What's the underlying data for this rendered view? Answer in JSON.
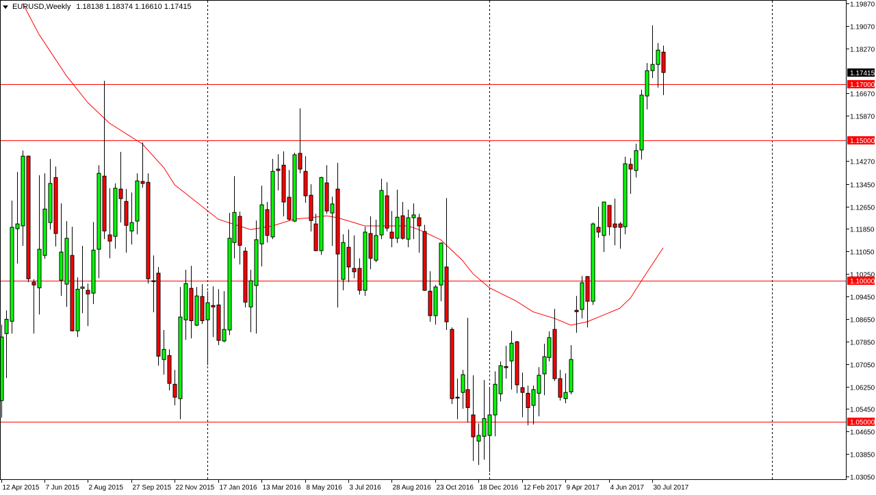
{
  "header": {
    "symbol_period": "EURUSD,Weekly",
    "ohlc_text": "1.18138 1.18374 1.16610 1.17415"
  },
  "colors": {
    "bull": "#00ff00",
    "bear": "#ff0000",
    "ma": "#ff0000",
    "level_line": "#ff0000",
    "current_price_bg": "#000000",
    "grid_separator": "#000000"
  },
  "icons": {
    "menu": "triangle-down-icon"
  },
  "chart_data": {
    "type": "candlestick",
    "title": "EURUSD,Weekly",
    "period": "Weekly",
    "first_candle_date": "2015-04-12",
    "ylim": [
      1.0305,
      1.1987
    ],
    "grid": false,
    "price_ticks": [
      "1.19870",
      "1.19070",
      "1.18270",
      "1.16670",
      "1.15870",
      "1.14270",
      "1.13450",
      "1.12650",
      "1.11850",
      "1.11050",
      "1.10250",
      "1.09450",
      "1.08650",
      "1.07850",
      "1.07050",
      "1.06250",
      "1.05450",
      "1.04650",
      "1.03850",
      "1.03050"
    ],
    "x_tick_labels": [
      {
        "date": "2015-04-12",
        "label": "12 Apr 2015"
      },
      {
        "date": "2015-06-07",
        "label": "7 Jun 2015"
      },
      {
        "date": "2015-08-02",
        "label": "2 Aug 2015"
      },
      {
        "date": "2015-09-27",
        "label": "27 Sep 2015"
      },
      {
        "date": "2015-11-22",
        "label": "22 Nov 2015"
      },
      {
        "date": "2016-01-17",
        "label": "17 Jan 2016"
      },
      {
        "date": "2016-03-13",
        "label": "13 Mar 2016"
      },
      {
        "date": "2016-05-08",
        "label": "8 May 2016"
      },
      {
        "date": "2016-07-03",
        "label": "3 Jul 2016"
      },
      {
        "date": "2016-08-28",
        "label": "28 Aug 2016"
      },
      {
        "date": "2016-10-23",
        "label": "23 Oct 2016"
      },
      {
        "date": "2016-12-18",
        "label": "18 Dec 2016"
      },
      {
        "date": "2017-02-12",
        "label": "12 Feb 2017"
      },
      {
        "date": "2017-04-09",
        "label": "9 Apr 2017"
      },
      {
        "date": "2017-06-04",
        "label": "4 Jun 2017"
      },
      {
        "date": "2017-07-30",
        "label": "30 Jul 2017"
      }
    ],
    "period_separators": [
      "2016-01-03",
      "2017-01-01",
      "2017-12-31"
    ],
    "horizontal_levels": [
      {
        "price": "1.17000"
      },
      {
        "price": "1.15000"
      },
      {
        "price": "1.10000"
      },
      {
        "price": "1.05000"
      }
    ],
    "current_price": "1.17415",
    "candles_ohlc": [
      [
        1.0575,
        1.0845,
        1.0514,
        1.0801
      ],
      [
        1.0813,
        1.0896,
        1.0655,
        1.0864
      ],
      [
        1.0857,
        1.1286,
        1.0813,
        1.1191
      ],
      [
        1.1186,
        1.1388,
        1.1062,
        1.1203
      ],
      [
        1.1196,
        1.1464,
        1.1125,
        1.1444
      ],
      [
        1.1444,
        1.1446,
        1.0996,
        1.1008
      ],
      [
        1.0996,
        1.1006,
        1.0813,
        1.0986
      ],
      [
        1.0976,
        1.1376,
        1.0881,
        1.1113
      ],
      [
        1.1091,
        1.1383,
        1.1079,
        1.1256
      ],
      [
        1.1208,
        1.1434,
        1.1183,
        1.1347
      ],
      [
        1.1368,
        1.1407,
        1.1123,
        1.1169
      ],
      [
        1.1003,
        1.1276,
        1.0947,
        1.1103
      ],
      [
        1.0989,
        1.1213,
        1.0908,
        1.1152
      ],
      [
        1.1091,
        1.1193,
        1.0821,
        1.0823
      ],
      [
        1.0823,
        1.1013,
        1.0801,
        1.0971
      ],
      [
        1.0974,
        1.1125,
        1.0886,
        1.0979
      ],
      [
        1.0967,
        1.0991,
        1.084,
        1.0954
      ],
      [
        1.0957,
        1.121,
        1.0918,
        1.111
      ],
      [
        1.1113,
        1.1412,
        1.101,
        1.1383
      ],
      [
        1.1373,
        1.1712,
        1.1149,
        1.1178
      ],
      [
        1.1164,
        1.133,
        1.1081,
        1.1142
      ],
      [
        1.1159,
        1.1347,
        1.1115,
        1.133
      ],
      [
        1.1327,
        1.1459,
        1.1208,
        1.1293
      ],
      [
        1.1283,
        1.1327,
        1.1101,
        1.1198
      ],
      [
        1.1178,
        1.1315,
        1.113,
        1.1208
      ],
      [
        1.1213,
        1.1383,
        1.1166,
        1.1356
      ],
      [
        1.1354,
        1.1493,
        1.1332,
        1.1347
      ],
      [
        1.1351,
        1.1383,
        1.0991,
        1.1008
      ],
      [
        1.1001,
        1.1091,
        1.0889,
        1.0998
      ],
      [
        1.1028,
        1.105,
        1.0699,
        1.0733
      ],
      [
        1.0721,
        1.0826,
        1.0667,
        1.0757
      ],
      [
        1.0735,
        1.0757,
        1.0611,
        1.0636
      ],
      [
        1.0633,
        1.0684,
        1.0558,
        1.0587
      ],
      [
        1.0582,
        1.0979,
        1.0509,
        1.0872
      ],
      [
        1.0862,
        1.104,
        1.0791,
        1.0991
      ],
      [
        1.0974,
        1.1054,
        1.0796,
        1.0859
      ],
      [
        1.0843,
        1.0979,
        1.084,
        1.0947
      ],
      [
        1.0945,
        1.0989,
        1.0847,
        1.0859
      ],
      [
        1.0862,
        1.0964,
        1.0701,
        1.0923
      ],
      [
        1.0913,
        1.0981,
        1.0801,
        1.0908
      ],
      [
        1.0915,
        1.0971,
        1.0772,
        1.0789
      ],
      [
        1.0787,
        1.0964,
        1.0782,
        1.0828
      ],
      [
        1.0826,
        1.1242,
        1.0808,
        1.1152
      ],
      [
        1.1137,
        1.1373,
        1.1081,
        1.1244
      ],
      [
        1.123,
        1.1247,
        1.1059,
        1.1127
      ],
      [
        1.1106,
        1.112,
        1.0906,
        1.0925
      ],
      [
        1.0908,
        1.104,
        1.0818,
        1.1001
      ],
      [
        1.0984,
        1.1215,
        1.0813,
        1.1147
      ],
      [
        1.1132,
        1.1339,
        1.1052,
        1.1271
      ],
      [
        1.1254,
        1.1281,
        1.1137,
        1.1162
      ],
      [
        1.1157,
        1.1434,
        1.1149,
        1.139
      ],
      [
        1.1398,
        1.1451,
        1.1322,
        1.1393
      ],
      [
        1.1412,
        1.1461,
        1.123,
        1.1281
      ],
      [
        1.1298,
        1.1395,
        1.1215,
        1.122
      ],
      [
        1.1213,
        1.1456,
        1.121,
        1.1449
      ],
      [
        1.1454,
        1.1614,
        1.1383,
        1.1398
      ],
      [
        1.139,
        1.1444,
        1.1278,
        1.1303
      ],
      [
        1.1305,
        1.1344,
        1.1176,
        1.1215
      ],
      [
        1.1203,
        1.1239,
        1.1106,
        1.1108
      ],
      [
        1.1108,
        1.1371,
        1.1093,
        1.1368
      ],
      [
        1.1349,
        1.1412,
        1.1239,
        1.1249
      ],
      [
        1.1242,
        1.13,
        1.1125,
        1.1274
      ],
      [
        1.1327,
        1.142,
        1.0906,
        1.1096
      ],
      [
        1.1006,
        1.1166,
        1.0967,
        1.1137
      ],
      [
        1.112,
        1.1183,
        1.0996,
        1.105
      ],
      [
        1.1045,
        1.1162,
        1.101,
        1.1033
      ],
      [
        1.1045,
        1.1081,
        1.0952,
        1.0967
      ],
      [
        1.0967,
        1.1193,
        1.0947,
        1.1174
      ],
      [
        1.1169,
        1.123,
        1.1042,
        1.1081
      ],
      [
        1.1074,
        1.1218,
        1.1067,
        1.1162
      ],
      [
        1.1164,
        1.1364,
        1.1149,
        1.1322
      ],
      [
        1.1303,
        1.1351,
        1.1176,
        1.1188
      ],
      [
        1.1174,
        1.1249,
        1.112,
        1.1152
      ],
      [
        1.1152,
        1.1325,
        1.1135,
        1.1227
      ],
      [
        1.1232,
        1.1281,
        1.1147,
        1.1152
      ],
      [
        1.1149,
        1.1254,
        1.112,
        1.1225
      ],
      [
        1.1225,
        1.1276,
        1.1149,
        1.1235
      ],
      [
        1.1225,
        1.1239,
        1.1101,
        1.1196
      ],
      [
        1.1176,
        1.12,
        1.0965,
        1.0967
      ],
      [
        1.0964,
        1.1035,
        1.0855,
        1.0877
      ],
      [
        1.0877,
        1.0986,
        1.0845,
        1.0979
      ],
      [
        1.0986,
        1.1137,
        1.0928,
        1.1135
      ],
      [
        1.105,
        1.1295,
        1.0826,
        1.0855
      ],
      [
        1.0828,
        1.0835,
        1.0563,
        1.0582
      ],
      [
        1.0587,
        1.0653,
        1.0509,
        1.0584
      ],
      [
        1.0604,
        1.0684,
        1.0546,
        1.0667
      ],
      [
        1.0614,
        1.0869,
        1.0497,
        1.055
      ],
      [
        1.0524,
        1.0665,
        1.036,
        1.0446
      ],
      [
        1.0431,
        1.0494,
        1.0346,
        1.0451
      ],
      [
        1.0448,
        1.0648,
        1.0365,
        1.0511
      ],
      [
        1.0451,
        1.0619,
        1.0321,
        1.0524
      ],
      [
        1.0524,
        1.0679,
        1.0448,
        1.0633
      ],
      [
        1.0599,
        1.0714,
        1.0572,
        1.0699
      ],
      [
        1.0696,
        1.077,
        1.0653,
        1.0692
      ],
      [
        1.0716,
        1.0823,
        1.0614,
        1.0779
      ],
      [
        1.0784,
        1.0787,
        1.0601,
        1.0631
      ],
      [
        1.0621,
        1.0675,
        1.0516,
        1.0604
      ],
      [
        1.0601,
        1.0628,
        1.0487,
        1.055
      ],
      [
        1.0558,
        1.0628,
        1.049,
        1.0614
      ],
      [
        1.0601,
        1.0694,
        1.0519,
        1.0665
      ],
      [
        1.067,
        1.0777,
        1.0594,
        1.0731
      ],
      [
        1.0728,
        1.0821,
        1.0714,
        1.0799
      ],
      [
        1.0828,
        1.0901,
        1.0645,
        1.0653
      ],
      [
        1.0653,
        1.0684,
        1.0575,
        1.0587
      ],
      [
        1.0582,
        1.0672,
        1.0565,
        1.0604
      ],
      [
        1.0606,
        1.0772,
        1.0597,
        1.0721
      ],
      [
        1.0896,
        1.0947,
        1.0816,
        1.0891
      ],
      [
        1.0899,
        1.1018,
        1.0867,
        1.0994
      ],
      [
        1.1016,
        1.1018,
        1.0835,
        1.0928
      ],
      [
        1.0928,
        1.1208,
        1.0915,
        1.1203
      ],
      [
        1.1191,
        1.1264,
        1.1154,
        1.1174
      ],
      [
        1.1162,
        1.1281,
        1.1103,
        1.1281
      ],
      [
        1.1269,
        1.1269,
        1.1162,
        1.1193
      ],
      [
        1.1203,
        1.1293,
        1.1127,
        1.1191
      ],
      [
        1.1203,
        1.121,
        1.1115,
        1.1191
      ],
      [
        1.1193,
        1.1442,
        1.1166,
        1.1417
      ],
      [
        1.1415,
        1.1437,
        1.131,
        1.1398
      ],
      [
        1.1393,
        1.1488,
        1.1368,
        1.1464
      ],
      [
        1.1466,
        1.168,
        1.1432,
        1.1661
      ],
      [
        1.1658,
        1.1775,
        1.161,
        1.1748
      ],
      [
        1.1748,
        1.1909,
        1.1722,
        1.177
      ],
      [
        1.177,
        1.1846,
        1.1688,
        1.1821
      ],
      [
        1.18138,
        1.18374,
        1.1661,
        1.17415
      ]
    ],
    "moving_average": [
      [
        "2015-05-10",
        1.1987
      ],
      [
        "2015-05-31",
        1.1877
      ],
      [
        "2015-07-05",
        1.1731
      ],
      [
        "2015-08-02",
        1.1634
      ],
      [
        "2015-08-30",
        1.1561
      ],
      [
        "2015-09-27",
        1.1512
      ],
      [
        "2015-10-11",
        1.1488
      ],
      [
        "2015-11-08",
        1.1403
      ],
      [
        "2015-11-22",
        1.1342
      ],
      [
        "2015-12-20",
        1.1281
      ],
      [
        "2016-01-17",
        1.122
      ],
      [
        "2016-02-07",
        1.1201
      ],
      [
        "2016-02-28",
        1.1183
      ],
      [
        "2016-03-27",
        1.1196
      ],
      [
        "2016-04-24",
        1.122
      ],
      [
        "2016-05-15",
        1.1225
      ],
      [
        "2016-06-05",
        1.1232
      ],
      [
        "2016-06-19",
        1.1225
      ],
      [
        "2016-07-10",
        1.1208
      ],
      [
        "2016-07-24",
        1.1196
      ],
      [
        "2016-09-18",
        1.1196
      ],
      [
        "2016-10-02",
        1.1183
      ],
      [
        "2016-10-30",
        1.1147
      ],
      [
        "2016-11-27",
        1.1074
      ],
      [
        "2016-12-11",
        1.1025
      ],
      [
        "2017-01-01",
        1.0976
      ],
      [
        "2017-02-05",
        1.0928
      ],
      [
        "2017-02-26",
        1.0891
      ],
      [
        "2017-03-26",
        1.0867
      ],
      [
        "2017-04-16",
        1.0843
      ],
      [
        "2017-05-07",
        1.0855
      ],
      [
        "2017-05-28",
        1.0879
      ],
      [
        "2017-06-18",
        1.0903
      ],
      [
        "2017-07-02",
        1.094
      ],
      [
        "2017-07-16",
        1.1001
      ],
      [
        "2017-08-13",
        1.1118
      ]
    ]
  }
}
